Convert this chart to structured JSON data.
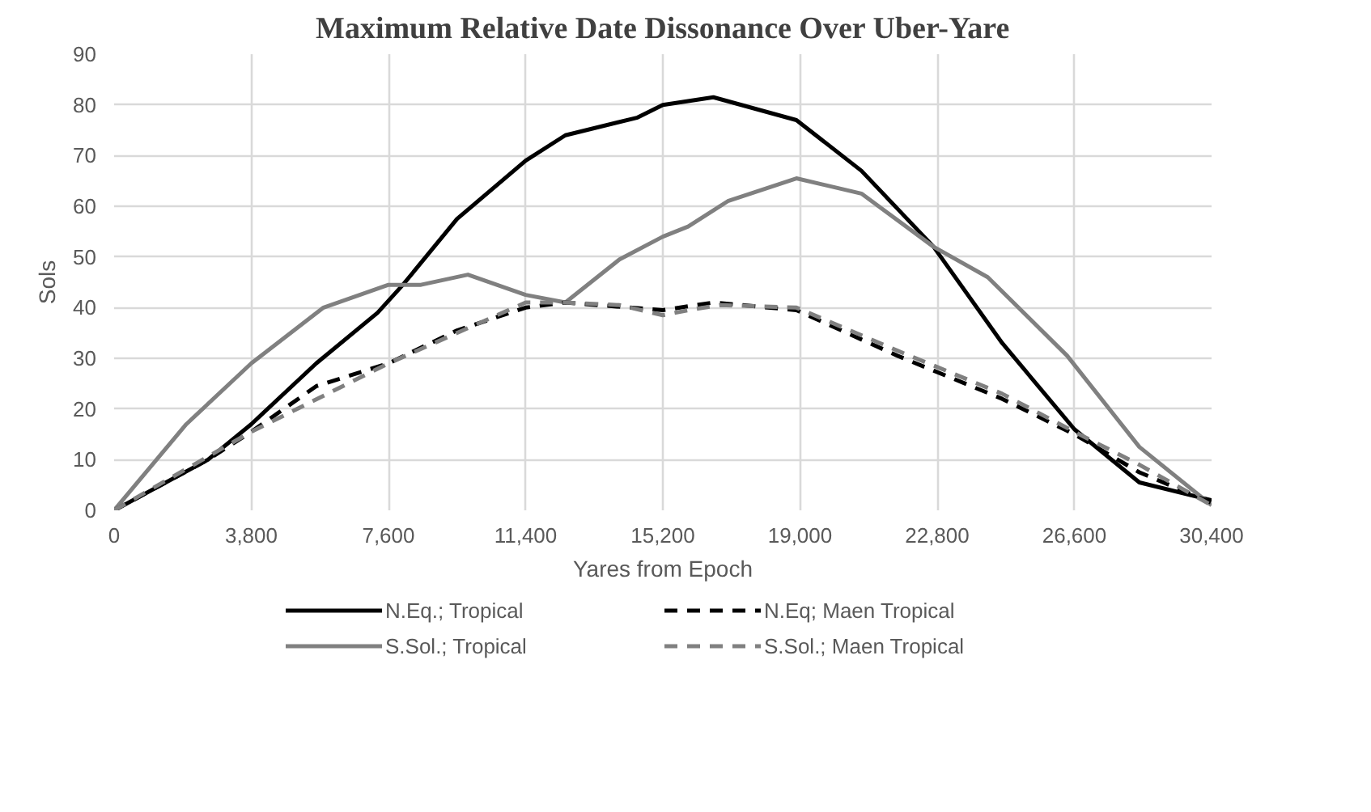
{
  "chart_data": {
    "type": "line",
    "title": "Maximum Relative Date Dissonance Over Uber-Yare",
    "xlabel": "Yares from Epoch",
    "ylabel": "Sols",
    "xlim": [
      0,
      30400
    ],
    "xticks": [
      {
        "value": 0,
        "label": "0"
      },
      {
        "value": 3800,
        "label": "3,800"
      },
      {
        "value": 7600,
        "label": "7,600"
      },
      {
        "value": 11400,
        "label": "11,400"
      },
      {
        "value": 15200,
        "label": "15,200"
      },
      {
        "value": 19000,
        "label": "19,000"
      },
      {
        "value": 22800,
        "label": "22,800"
      },
      {
        "value": 26600,
        "label": "26,600"
      },
      {
        "value": 30400,
        "label": "30,400"
      }
    ],
    "ylim": [
      0,
      90
    ],
    "yticks": [
      0,
      10,
      20,
      30,
      40,
      50,
      60,
      70,
      80,
      90
    ],
    "grid": true,
    "legend": "bottom",
    "marker": "none",
    "series": [
      {
        "name": "N.Eq.; Tropical",
        "color": "#000000",
        "line_style": "solid",
        "x": [
          0,
          2600,
          3800,
          5600,
          7300,
          8000,
          9500,
          11400,
          12500,
          14500,
          15200,
          16600,
          18900,
          20700,
          21700,
          22700,
          24600,
          26600,
          28400,
          30400
        ],
        "values": [
          0,
          10,
          17,
          29,
          39,
          44.5,
          57.5,
          69,
          74,
          77.5,
          80,
          81.5,
          77,
          67,
          59.5,
          52,
          33,
          16,
          5.5,
          2
        ]
      },
      {
        "name": "S.Sol.; Tropical",
        "color": "#808080",
        "line_style": "solid",
        "x": [
          0,
          2000,
          3800,
          5800,
          7600,
          8500,
          9800,
          11400,
          12500,
          14000,
          15200,
          15900,
          17000,
          18900,
          20700,
          22700,
          24200,
          26400,
          28400,
          30400
        ],
        "values": [
          0,
          17,
          29,
          40,
          44.5,
          44.5,
          46.5,
          42.5,
          41,
          49.5,
          54,
          56,
          61,
          65.5,
          62.5,
          52,
          46,
          30.5,
          12.5,
          1
        ]
      },
      {
        "name": "N.Eq; Maen Tropical",
        "color": "#000000",
        "line_style": "dashed",
        "x": [
          0,
          2600,
          3800,
          5600,
          7600,
          9500,
          11400,
          12500,
          15200,
          16600,
          18900,
          21700,
          24600,
          26600,
          28400,
          30400
        ],
        "values": [
          0,
          10,
          15.5,
          24.5,
          29,
          35.5,
          40,
          41,
          39.5,
          41,
          39.5,
          30.5,
          22,
          15,
          7.5,
          1.5
        ]
      },
      {
        "name": "S.Sol.; Maen Tropical",
        "color": "#808080",
        "line_style": "dashed",
        "x": [
          0,
          3800,
          7600,
          11400,
          12500,
          14000,
          15200,
          15900,
          16800,
          18900,
          21700,
          24600,
          26600,
          28400,
          30400
        ],
        "values": [
          0,
          15.5,
          29,
          41,
          41,
          40.5,
          38.5,
          39.5,
          40.5,
          40,
          31.5,
          23,
          15.5,
          9,
          1
        ]
      }
    ]
  }
}
